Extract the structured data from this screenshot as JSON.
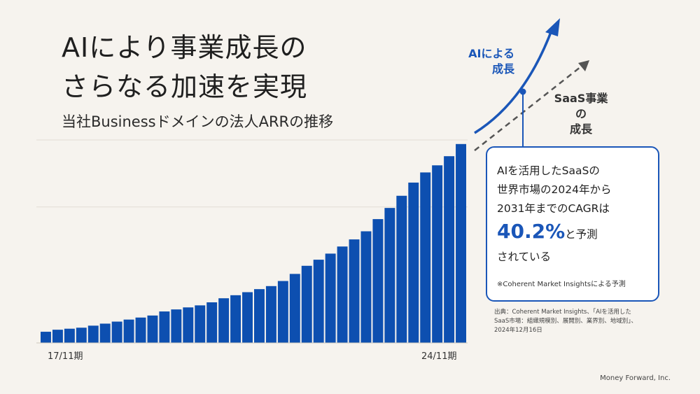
{
  "title_line1": "AIにより事業成長の",
  "title_line2": "さらなる加速を実現",
  "subtitle": "当社Businessドメインの法人ARRの推移",
  "ai_label_line1": "AIによる",
  "ai_label_line2": "成長",
  "saas_label_line1": "SaaS事業",
  "saas_label_line2": "の",
  "saas_label_line3": "成長",
  "callout": {
    "line1": "AIを活用したSaaSの",
    "line2": "世界市場の2024年から",
    "line3": "2031年までのCAGRは",
    "highlight": "40.2%",
    "highlight_suffix": "と予測",
    "line5": "されている",
    "note": "※Coherent Market Insightsによる予測"
  },
  "source_line1": "出典：Coherent Market Insights、「AIを活用した",
  "source_line2": "SaaS市場：組織規模別、展開別、業界別、地域別」、",
  "source_line3": "2024年12月16日",
  "footer": "Money Forward, Inc.",
  "colors": {
    "bar": "#0d4fb0",
    "ai_arrow": "#1a56b8",
    "saas_arrow": "#555555",
    "background": "#f6f3ee",
    "gridline": "#e2ddd4"
  },
  "chart_data": {
    "type": "bar",
    "x_tick_labels": [
      "17/11期",
      "24/11期"
    ],
    "categories_note": "",
    "values": [
      11,
      13,
      14,
      15,
      17,
      19,
      21,
      23,
      25,
      27,
      31,
      33,
      35,
      37,
      40,
      44,
      47,
      50,
      53,
      56,
      61,
      68,
      76,
      82,
      88,
      95,
      102,
      110,
      122,
      133,
      145,
      158,
      168,
      175,
      184,
      196
    ],
    "ylim": [
      0,
      200
    ],
    "gridlines": [
      134,
      200
    ],
    "grid": true,
    "title": "",
    "xlabel": "",
    "ylabel": ""
  }
}
